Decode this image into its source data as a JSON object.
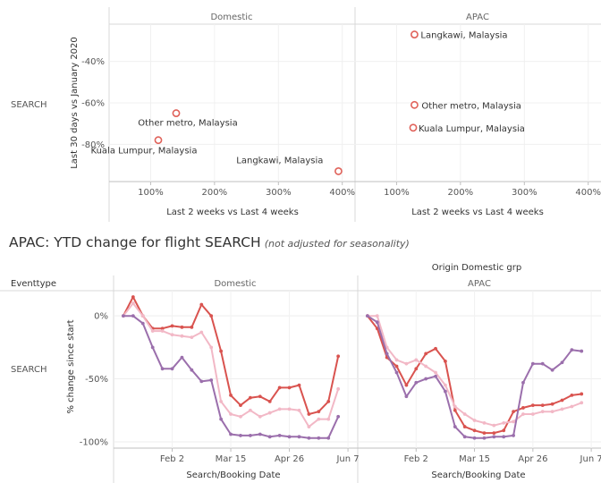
{
  "top": {
    "row_label": "SEARCH",
    "panels": [
      "Domestic",
      "APAC"
    ],
    "ylabel": "Last 30 days vs January 2020",
    "xlabel": "Last 2 weeks vs Last 4 weeks"
  },
  "bottom": {
    "title": "APAC: YTD change for flight SEARCH",
    "subtitle": "(not adjusted for seasonality)",
    "group_header": "Origin Domestic grp",
    "row_header": "Eventtype",
    "row_label": "SEARCH",
    "panels": [
      "Domestic",
      "APAC"
    ],
    "ylabel": "% change since start",
    "xlabel": "Search/Booking Date"
  },
  "colors": {
    "red": "#d9534f",
    "pink": "#f2b8c6",
    "purple": "#9b6fac",
    "marker": "#e0625a"
  },
  "chart_data": [
    {
      "type": "scatter",
      "xlabel": "Last 2 weeks vs Last 4 weeks",
      "ylabel": "Last 30 days vs January 2020",
      "x_ticks": [
        "100%",
        "200%",
        "300%",
        "400%"
      ],
      "y_ticks": [
        "-40%",
        "-60%",
        "-80%"
      ],
      "xlim": [
        35,
        420
      ],
      "ylim": [
        -98,
        -22
      ],
      "panels": [
        {
          "name": "Domestic",
          "points": [
            {
              "label": "Other metro, Malaysia",
              "x": 140,
              "y": -65
            },
            {
              "label": "Kuala Lumpur, Malaysia",
              "x": 112,
              "y": -78
            },
            {
              "label": "Langkawi, Malaysia",
              "x": 394,
              "y": -93
            }
          ]
        },
        {
          "name": "APAC",
          "points": [
            {
              "label": "Langkawi, Malaysia",
              "x": 128,
              "y": -27
            },
            {
              "label": "Other metro, Malaysia",
              "x": 128,
              "y": -61
            },
            {
              "label": "Kuala Lumpur, Malaysia",
              "x": 126,
              "y": -72
            }
          ]
        }
      ]
    },
    {
      "type": "line",
      "xlabel": "Search/Booking Date",
      "ylabel": "% change since start",
      "x_ticks": [
        "Feb 2",
        "Mar 15",
        "Apr 26",
        "Jun 7"
      ],
      "x_tick_weeks": [
        5,
        11,
        17,
        23
      ],
      "y_ticks": [
        "0%",
        "-50%",
        "-100%"
      ],
      "ylim": [
        -105,
        20
      ],
      "xlim": [
        -1,
        24
      ],
      "panels": [
        {
          "name": "Domestic",
          "series": [
            {
              "color": "red",
              "values": [
                0,
                15,
                0,
                -10,
                -10,
                -8,
                -9,
                -9,
                9,
                0,
                -28,
                -63,
                -71,
                -65,
                -64,
                -68,
                -57,
                -57,
                -55,
                -78,
                -76,
                -68,
                -32
              ]
            },
            {
              "color": "pink",
              "values": [
                0,
                10,
                0,
                -12,
                -12,
                -15,
                -16,
                -17,
                -13,
                -25,
                -68,
                -78,
                -80,
                -75,
                -80,
                -77,
                -74,
                -74,
                -75,
                -88,
                -82,
                -82,
                -58
              ]
            },
            {
              "color": "purple",
              "values": [
                0,
                0,
                -6,
                -25,
                -42,
                -42,
                -33,
                -43,
                -52,
                -51,
                -82,
                -94,
                -95,
                -95,
                -94,
                -96,
                -95,
                -96,
                -96,
                -97,
                -97,
                -97,
                -80
              ]
            }
          ]
        },
        {
          "name": "APAC",
          "series": [
            {
              "color": "red",
              "values": [
                0,
                -10,
                -33,
                -40,
                -55,
                -42,
                -30,
                -26,
                -36,
                -75,
                -88,
                -91,
                -93,
                -93,
                -91,
                -76,
                -73,
                -71,
                -71,
                -70,
                -67,
                -63,
                -62
              ]
            },
            {
              "color": "pink",
              "values": [
                0,
                0,
                -25,
                -35,
                -38,
                -35,
                -40,
                -45,
                -55,
                -72,
                -78,
                -83,
                -85,
                -87,
                -85,
                -84,
                -78,
                -78,
                -76,
                -76,
                -74,
                -72,
                -69
              ]
            },
            {
              "color": "purple",
              "values": [
                0,
                -5,
                -30,
                -45,
                -64,
                -53,
                -50,
                -48,
                -60,
                -88,
                -96,
                -97,
                -97,
                -96,
                -96,
                -95,
                -53,
                -38,
                -38,
                -43,
                -37,
                -27,
                -28
              ]
            }
          ]
        }
      ]
    }
  ]
}
